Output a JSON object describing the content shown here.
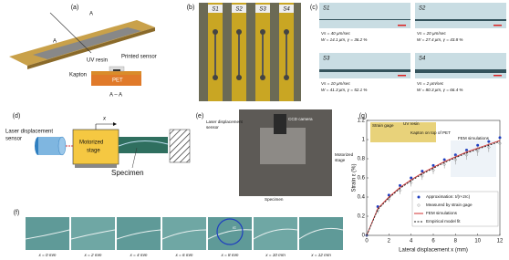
{
  "panel_labels": [
    "(a)",
    "(b)",
    "(c)",
    "(d)",
    "(e)",
    "(f)",
    "(g)"
  ],
  "a": {
    "section_marks": [
      "A",
      "A"
    ],
    "uv_resin": "UV resin",
    "printed_sensor": "Printed sensor",
    "kapton": "Kapton",
    "pet": "PET",
    "section": "A – A"
  },
  "b": {
    "strips": [
      "S1",
      "S2",
      "S3",
      "S4"
    ]
  },
  "c": {
    "cells": [
      {
        "name": "S1",
        "speed": "Vs = 40 μm/sec",
        "result": "W = 14.1 μm, γ = 36.2 %"
      },
      {
        "name": "S2",
        "speed": "Vs = 20 μm/sec",
        "result": "W = 27.4 μm, γ = 43.8 %"
      },
      {
        "name": "S3",
        "speed": "Vs = 10 μm/sec",
        "result": "W = 41.3 μm, γ = 52.1 %"
      },
      {
        "name": "S4",
        "speed": "Vs = 2 μm/sec",
        "result": "W = 80.3 μm, γ = 66.4 %"
      }
    ]
  },
  "d": {
    "laser": [
      "Laser displacement",
      "sensor"
    ],
    "stage": [
      "Motorized",
      "stage"
    ],
    "axis": "x",
    "specimen": "Specimen"
  },
  "e": {
    "laser": [
      "Laser displacement",
      "sensor"
    ],
    "camera": "CCD camera",
    "stage": [
      "Motorized",
      "stage"
    ],
    "specimen": "Specimen"
  },
  "f": {
    "frames": [
      "x = 0 mm",
      "x = 2 mm",
      "x = 4 mm",
      "x = 6 mm",
      "x = 8 mm",
      "x = 10 mm",
      "x = 12 mm"
    ],
    "radius": "rc"
  },
  "chart_data": {
    "type": "line",
    "x_label": "Lateral displacement x (mm)",
    "y_label": "Strain ε (%)",
    "annotations": [
      "Strain gage",
      "UV resin",
      "Kapton on top of PET",
      "FEM simulations"
    ],
    "x": [
      0,
      1,
      2,
      3,
      4,
      5,
      6,
      7,
      8,
      9,
      10,
      11,
      12
    ],
    "series": [
      {
        "name": "Approximation: t/(r+2rc)",
        "color": "#1f3fbf",
        "style": "dots",
        "values": [
          0,
          0.3,
          0.42,
          0.52,
          0.6,
          0.67,
          0.73,
          0.79,
          0.84,
          0.89,
          0.94,
          0.98,
          1.02
        ]
      },
      {
        "name": "Measured by strain gage",
        "color": "#888888",
        "style": "errorbars",
        "values": [
          0,
          0.26,
          0.38,
          0.47,
          0.55,
          0.62,
          0.68,
          0.74,
          0.79,
          0.84,
          0.88,
          0.92,
          0.96
        ],
        "errors": [
          0.02,
          0.03,
          0.03,
          0.04,
          0.04,
          0.04,
          0.04,
          0.04,
          0.05,
          0.05,
          0.05,
          0.05,
          0.05
        ]
      },
      {
        "name": "FEM simulations",
        "color": "#d03030",
        "style": "solid",
        "values": [
          0,
          0.28,
          0.4,
          0.5,
          0.58,
          0.65,
          0.71,
          0.77,
          0.82,
          0.87,
          0.91,
          0.95,
          0.99
        ]
      },
      {
        "name": "Empirical model fit",
        "color": "#222222",
        "style": "dashed",
        "values": [
          0,
          0.27,
          0.39,
          0.49,
          0.57,
          0.64,
          0.7,
          0.76,
          0.81,
          0.86,
          0.9,
          0.94,
          0.98
        ]
      }
    ],
    "xlim": [
      0,
      12
    ],
    "ylim": [
      0,
      1.2
    ],
    "xticks": [
      0,
      2,
      4,
      6,
      8,
      10,
      12
    ],
    "yticks": [
      0,
      0.2,
      0.4,
      0.6,
      0.8,
      1,
      1.2
    ]
  }
}
